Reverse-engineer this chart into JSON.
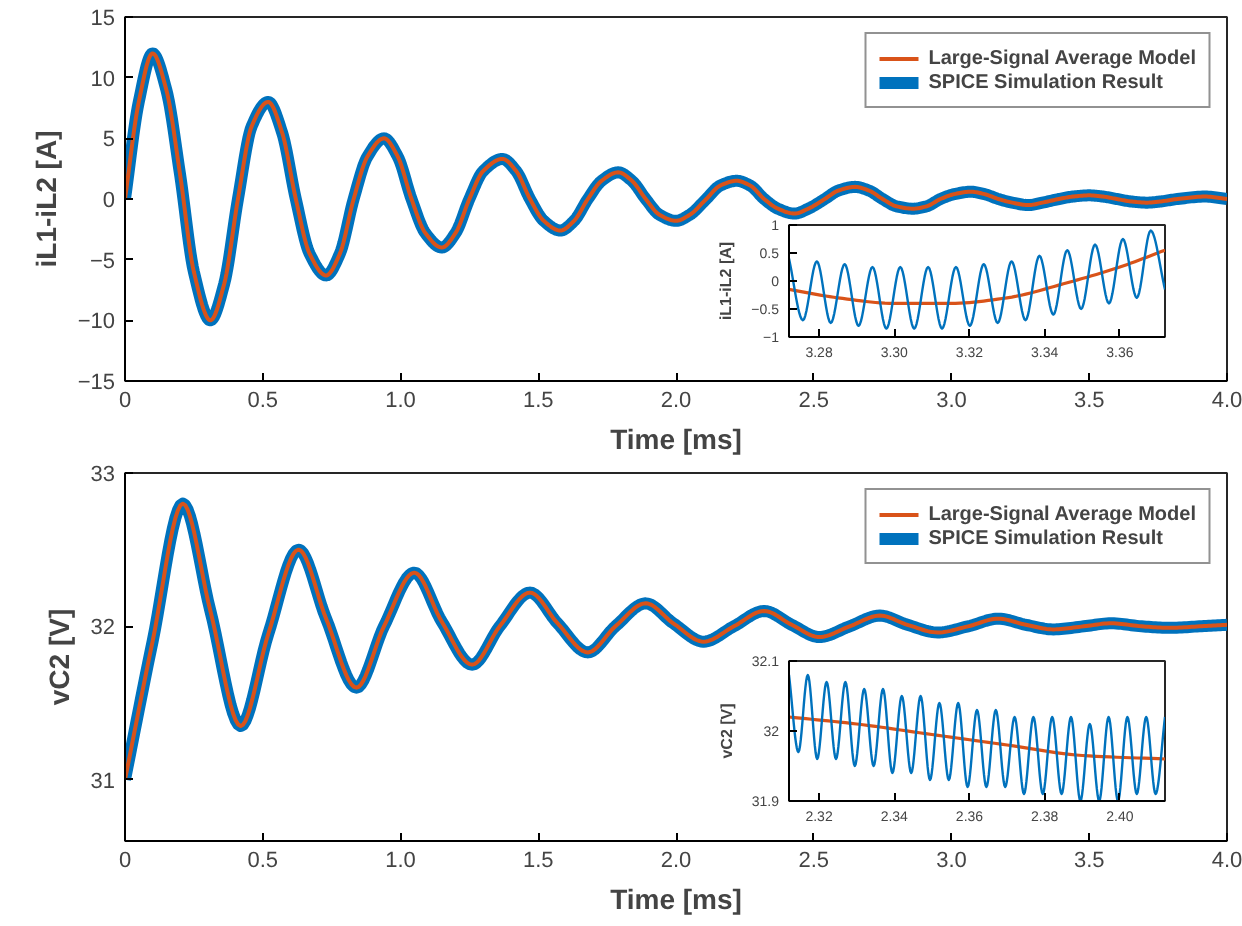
{
  "chart_data": [
    {
      "type": "line",
      "xlabel": "Time [ms]",
      "ylabel": "iL1-iL2 [A]",
      "xlim": [
        0,
        4
      ],
      "ylim": [
        -15,
        15
      ],
      "xticks": [
        0,
        0.5,
        {
          "value": 1,
          "label": "1.0"
        },
        1.5,
        {
          "value": 2,
          "label": "2.0"
        },
        2.5,
        {
          "value": 3,
          "label": "3.0"
        },
        3.5,
        {
          "value": 4,
          "label": "4.0"
        }
      ],
      "yticks": [
        -15,
        -10,
        -5,
        0,
        5,
        10,
        15
      ],
      "grid": false,
      "legend": "top right",
      "x": [
        0,
        0.05,
        0.1,
        0.15,
        0.2,
        0.25,
        0.31,
        0.36,
        0.41,
        0.46,
        0.52,
        0.57,
        0.62,
        0.67,
        0.73,
        0.78,
        0.83,
        0.88,
        0.94,
        0.99,
        1.04,
        1.09,
        1.15,
        1.2,
        1.25,
        1.3,
        1.37,
        1.42,
        1.47,
        1.52,
        1.58,
        1.63,
        1.68,
        1.73,
        1.79,
        1.84,
        1.89,
        1.94,
        2.0,
        2.05,
        2.11,
        2.16,
        2.22,
        2.27,
        2.32,
        2.37,
        2.43,
        2.48,
        2.54,
        2.59,
        2.65,
        2.7,
        2.75,
        2.8,
        2.86,
        2.91,
        2.96,
        3.01,
        3.07,
        3.12,
        3.17,
        3.22,
        3.28,
        3.33,
        3.39,
        3.44,
        3.5,
        3.55,
        3.6,
        3.65,
        3.71,
        3.76,
        3.82,
        3.92,
        4.0
      ],
      "series": [
        {
          "name": "Large-Signal Average Model",
          "color": "#d95319",
          "values": [
            0,
            8,
            12,
            9,
            2,
            -6,
            -10,
            -7,
            0,
            6,
            8,
            5.5,
            0,
            -4.5,
            -6.3,
            -4.5,
            0,
            3.5,
            5,
            3.5,
            0,
            -2.8,
            -4,
            -2.8,
            0,
            2.3,
            3.3,
            2.3,
            0,
            -1.8,
            -2.6,
            -1.8,
            0,
            1.5,
            2.2,
            1.5,
            0,
            -1.3,
            -1.8,
            -1.3,
            0,
            1.1,
            1.5,
            1.1,
            0,
            -0.8,
            -1.2,
            -0.8,
            0,
            0.7,
            1.0,
            0.7,
            0,
            -0.6,
            -0.8,
            -0.6,
            0,
            0.4,
            0.6,
            0.4,
            0,
            -0.3,
            -0.5,
            -0.3,
            0,
            0.2,
            0.3,
            0.2,
            0,
            -0.2,
            -0.3,
            -0.2,
            0,
            0.2,
            0
          ]
        },
        {
          "name": "SPICE Simulation Result",
          "color": "#0072bd",
          "values": [
            0,
            8,
            12,
            9,
            2,
            -6,
            -10,
            -7,
            0,
            6,
            8,
            5.5,
            0,
            -4.5,
            -6.3,
            -4.5,
            0,
            3.5,
            5,
            3.5,
            0,
            -2.8,
            -4,
            -2.8,
            0,
            2.3,
            3.3,
            2.3,
            0,
            -1.8,
            -2.6,
            -1.8,
            0,
            1.5,
            2.2,
            1.5,
            0,
            -1.3,
            -1.8,
            -1.3,
            0,
            1.1,
            1.5,
            1.1,
            0,
            -0.8,
            -1.2,
            -0.8,
            0,
            0.7,
            1.0,
            0.7,
            0,
            -0.6,
            -0.8,
            -0.6,
            0,
            0.4,
            0.6,
            0.4,
            0,
            -0.3,
            -0.5,
            -0.3,
            0,
            0.2,
            0.3,
            0.2,
            0,
            -0.2,
            -0.3,
            -0.2,
            0,
            0.2,
            0
          ]
        }
      ]
    },
    {
      "type": "line",
      "ylabel": "iL1-iL2 [A]",
      "xlim": [
        3.272,
        3.372
      ],
      "ylim": [
        -1,
        1
      ],
      "xticks": [
        3.28,
        {
          "value": 3.3,
          "label": "3.30"
        },
        3.32,
        3.34,
        3.36
      ],
      "yticks": [
        -1,
        -0.5,
        0,
        0.5,
        1
      ],
      "grid": false,
      "series": [
        {
          "color": "#0072bd",
          "x": [
            3.272,
            3.2757,
            3.2794,
            3.2831,
            3.2868,
            3.2905,
            3.2942,
            3.2979,
            3.3016,
            3.3053,
            3.309,
            3.3127,
            3.3164,
            3.3201,
            3.3238,
            3.3275,
            3.3312,
            3.3349,
            3.3386,
            3.3423,
            3.346,
            3.3497,
            3.3534,
            3.3571,
            3.3608,
            3.3645,
            3.3682,
            3.372
          ],
          "values": [
            0.4,
            -0.7,
            0.35,
            -0.75,
            0.3,
            -0.8,
            0.25,
            -0.85,
            0.25,
            -0.85,
            0.25,
            -0.85,
            0.25,
            -0.8,
            0.3,
            -0.75,
            0.35,
            -0.7,
            0.45,
            -0.6,
            0.55,
            -0.5,
            0.65,
            -0.4,
            0.75,
            -0.3,
            0.9,
            -0.15
          ]
        },
        {
          "color": "#d95319",
          "x": [
            3.272,
            3.285,
            3.3,
            3.315,
            3.33,
            3.345,
            3.36,
            3.372
          ],
          "values": [
            -0.15,
            -0.3,
            -0.4,
            -0.4,
            -0.3,
            -0.05,
            0.25,
            0.55
          ]
        }
      ]
    },
    {
      "type": "line",
      "xlabel": "Time [ms]",
      "ylabel": "vC2 [V]",
      "xlim": [
        0,
        4
      ],
      "ylim": [
        30.6,
        33
      ],
      "xticks": [
        0,
        0.5,
        {
          "value": 1,
          "label": "1.0"
        },
        1.5,
        {
          "value": 2,
          "label": "2.0"
        },
        2.5,
        {
          "value": 3,
          "label": "3.0"
        },
        3.5,
        {
          "value": 4,
          "label": "4.0"
        }
      ],
      "yticks": [
        31,
        32,
        33
      ],
      "grid": false,
      "legend": "top right",
      "x": [
        0,
        0.1,
        0.21,
        0.31,
        0.42,
        0.52,
        0.63,
        0.73,
        0.84,
        0.94,
        1.05,
        1.15,
        1.26,
        1.36,
        1.47,
        1.57,
        1.68,
        1.78,
        1.89,
        1.99,
        2.1,
        2.21,
        2.32,
        2.42,
        2.52,
        2.63,
        2.74,
        2.84,
        2.95,
        3.06,
        3.17,
        3.27,
        3.37,
        3.48,
        3.58,
        3.69,
        3.79,
        3.9,
        4.0
      ],
      "series": [
        {
          "name": "Large-Signal Average Model",
          "color": "#d95319",
          "values": [
            31.0,
            31.9,
            32.8,
            32.1,
            31.35,
            31.95,
            32.5,
            32.05,
            31.6,
            32.0,
            32.35,
            32.03,
            31.75,
            32.0,
            32.22,
            32.02,
            31.83,
            32.0,
            32.15,
            32.02,
            31.9,
            32.0,
            32.1,
            32.01,
            31.93,
            32.0,
            32.07,
            32.01,
            31.96,
            32.0,
            32.05,
            32.01,
            31.98,
            32.0,
            32.02,
            32.0,
            31.99,
            32.0,
            32.01
          ]
        },
        {
          "name": "SPICE Simulation Result",
          "color": "#0072bd",
          "values": [
            31.0,
            31.9,
            32.8,
            32.1,
            31.35,
            31.95,
            32.5,
            32.05,
            31.6,
            32.0,
            32.35,
            32.03,
            31.75,
            32.0,
            32.22,
            32.02,
            31.83,
            32.0,
            32.15,
            32.02,
            31.9,
            32.0,
            32.1,
            32.01,
            31.93,
            32.0,
            32.07,
            32.01,
            31.96,
            32.0,
            32.05,
            32.01,
            31.98,
            32.0,
            32.02,
            32.0,
            31.99,
            32.0,
            32.01
          ]
        }
      ]
    },
    {
      "type": "line",
      "ylabel": "vC2 [V]",
      "xlim": [
        2.312,
        2.412
      ],
      "ylim": [
        31.9,
        32.1
      ],
      "xticks": [
        2.32,
        2.34,
        2.36,
        2.38,
        {
          "value": 2.4,
          "label": "2.40"
        }
      ],
      "yticks": [
        31.9,
        32,
        32.1
      ],
      "grid": false,
      "series": [
        {
          "color": "#0072bd",
          "x": [
            2.312,
            2.3145,
            2.317,
            2.3195,
            2.322,
            2.3245,
            2.327,
            2.3295,
            2.332,
            2.3345,
            2.337,
            2.3395,
            2.342,
            2.3445,
            2.347,
            2.3495,
            2.352,
            2.3545,
            2.357,
            2.3595,
            2.362,
            2.3645,
            2.367,
            2.3695,
            2.372,
            2.3745,
            2.377,
            2.3795,
            2.382,
            2.3845,
            2.387,
            2.3895,
            2.392,
            2.3945,
            2.397,
            2.3995,
            2.402,
            2.4045,
            2.407,
            2.4095,
            2.412
          ],
          "values": [
            32.08,
            31.97,
            32.08,
            31.96,
            32.07,
            31.96,
            32.07,
            31.95,
            32.06,
            31.95,
            32.06,
            31.94,
            32.05,
            31.94,
            32.05,
            31.93,
            32.04,
            31.93,
            32.04,
            31.92,
            32.03,
            31.92,
            32.03,
            31.92,
            32.02,
            31.91,
            32.02,
            31.91,
            32.02,
            31.91,
            32.02,
            31.9,
            32.01,
            31.9,
            32.02,
            31.9,
            32.02,
            31.91,
            32.02,
            31.91,
            32.02
          ]
        },
        {
          "color": "#d95319",
          "x": [
            2.312,
            2.33,
            2.35,
            2.37,
            2.39,
            2.412
          ],
          "values": [
            32.02,
            32.01,
            31.995,
            31.98,
            31.965,
            31.96
          ]
        }
      ]
    }
  ]
}
